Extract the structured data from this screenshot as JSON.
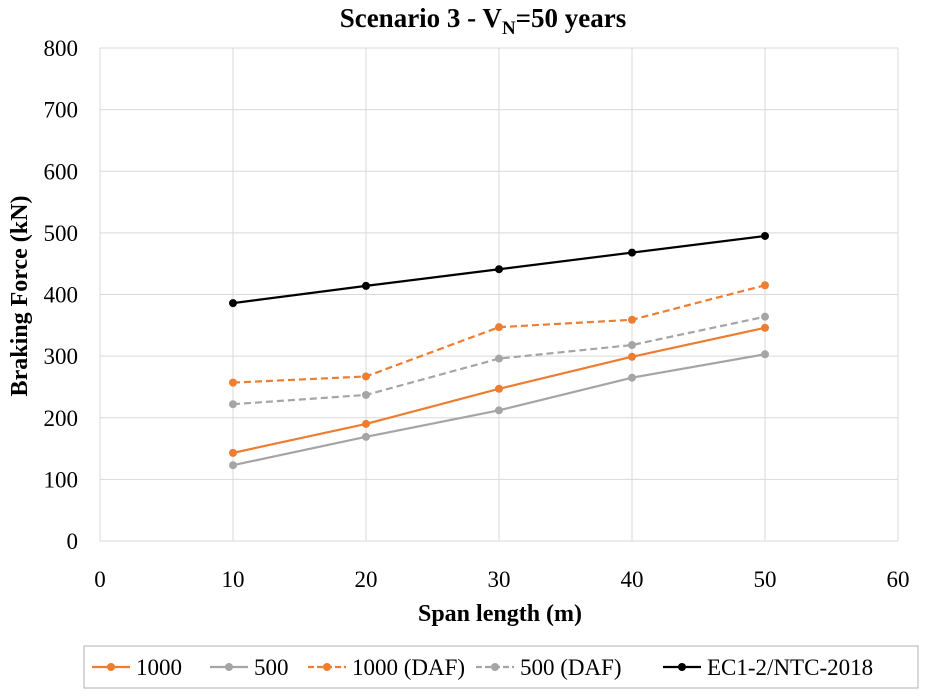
{
  "chart_data": {
    "type": "line",
    "title_main": "Scenario 3 - V",
    "title_sub": "N",
    "title_tail": "=50 years",
    "xlabel": "Span length (m)",
    "ylabel": "Braking Force (kN)",
    "xlim": [
      0,
      60
    ],
    "ylim": [
      0,
      800
    ],
    "xticks": [
      0,
      10,
      20,
      30,
      40,
      50,
      60
    ],
    "yticks": [
      0,
      100,
      200,
      300,
      400,
      500,
      600,
      700,
      800
    ],
    "grid": true,
    "legend_position": "bottom",
    "x": [
      10,
      20,
      30,
      40,
      50
    ],
    "series": [
      {
        "name": "1000",
        "values": [
          143,
          190,
          247,
          299,
          346
        ],
        "color": "#ED7D31",
        "dashed": false
      },
      {
        "name": "500",
        "values": [
          123,
          169,
          212,
          265,
          303
        ],
        "color": "#A5A5A5",
        "dashed": false
      },
      {
        "name": "1000 (DAF)",
        "values": [
          257,
          267,
          347,
          359,
          415
        ],
        "color": "#ED7D31",
        "dashed": true
      },
      {
        "name": "500 (DAF)",
        "values": [
          222,
          237,
          296,
          318,
          364
        ],
        "color": "#A5A5A5",
        "dashed": true
      },
      {
        "name": "EC1-2/NTC-2018",
        "values": [
          386,
          414,
          441,
          468,
          495
        ],
        "color": "#000000",
        "dashed": false
      }
    ]
  }
}
